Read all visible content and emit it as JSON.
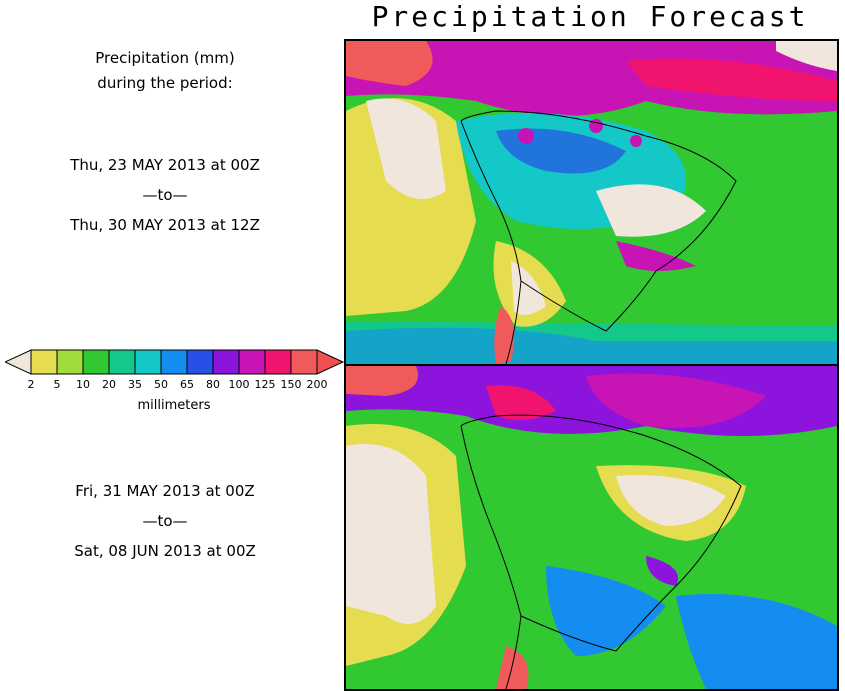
{
  "title": "Precipitation Forecast",
  "caption": {
    "line1": "Precipitation (mm)",
    "line2": "during the period:"
  },
  "period1": {
    "start": "Thu, 23 MAY 2013 at 00Z",
    "sep": "—to—",
    "end": "Thu, 30 MAY 2013 at 12Z"
  },
  "period2": {
    "start": "Fri, 31 MAY 2013 at 00Z",
    "sep": "—to—",
    "end": "Sat, 08 JUN 2013 at 00Z"
  },
  "legend": {
    "units": "millimeters",
    "labels": [
      "2",
      "5",
      "10",
      "20",
      "35",
      "50",
      "65",
      "80",
      "100",
      "125",
      "150",
      "200"
    ],
    "colors": [
      "#e6dc50",
      "#a0dc3c",
      "#32c832",
      "#14c88c",
      "#14c8c8",
      "#148cf0",
      "#2850e6",
      "#8c14dc",
      "#c814b4",
      "#f0146e",
      "#f05a5a"
    ],
    "low_color": "#f0e6dc",
    "high_color": "#f05050"
  }
}
